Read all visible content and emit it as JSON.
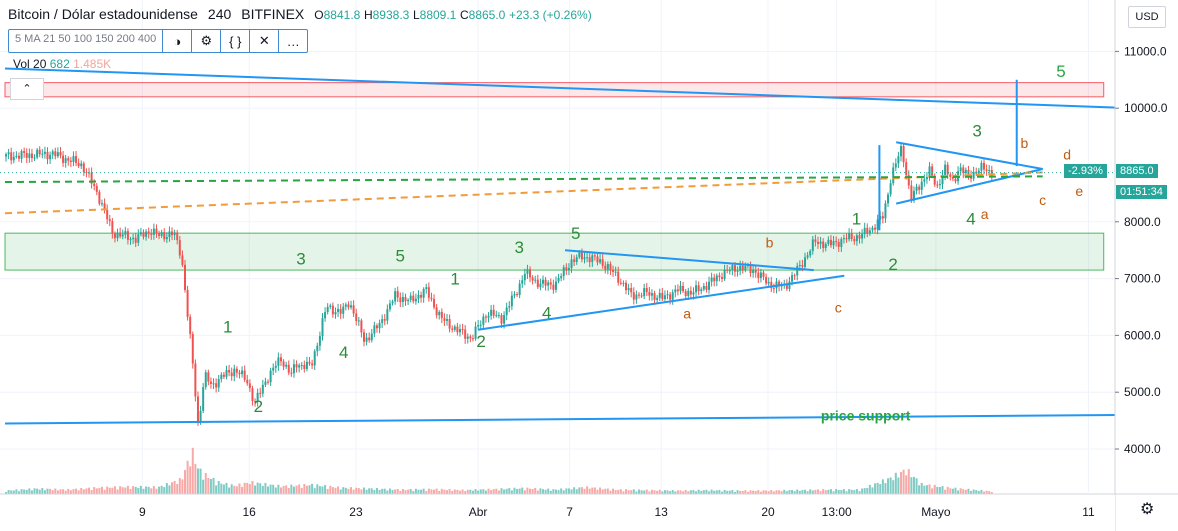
{
  "header": {
    "title": "Bitcoin / Dólar estadounidense",
    "interval": "240",
    "exchange": "BITFINEX",
    "ohlc": [
      {
        "label": "O",
        "value": "8841.8"
      },
      {
        "label": "H",
        "value": "8938.3"
      },
      {
        "label": "L",
        "value": "8809.1"
      },
      {
        "label": "C",
        "value": "8865.0"
      }
    ],
    "change": "+23.3 (+0.26%)"
  },
  "toolbar": {
    "ma_label": "5 MA 21 50 100 150 200 400",
    "icons": [
      "eye-off-icon",
      "gear-icon",
      "braces-icon",
      "close-icon",
      "more-icon"
    ]
  },
  "volume": {
    "label": "Vol",
    "period": "20",
    "value1": "682",
    "value2": "1.485K"
  },
  "collapse_label": "⌃",
  "currency": "USD",
  "settings_icon": "gear-icon",
  "price_axis": {
    "ticks": [
      {
        "value": 11000,
        "label": "11000.0"
      },
      {
        "value": 10000,
        "label": "10000.0"
      },
      {
        "value": 8000,
        "label": "8000.0"
      },
      {
        "value": 7000,
        "label": "7000.0"
      },
      {
        "value": 6000,
        "label": "6000.0"
      },
      {
        "value": 5000,
        "label": "5000.0"
      },
      {
        "value": 4000,
        "label": "4000.0"
      }
    ],
    "last_price": "8865.0",
    "last_change": "-2.93%",
    "countdown": "01:51:34",
    "colors": {
      "label_bg": "#26a69a"
    }
  },
  "time_axis": {
    "labels": [
      {
        "day": 9,
        "label": "9"
      },
      {
        "day": 16,
        "label": "16"
      },
      {
        "day": 23,
        "label": "23"
      },
      {
        "day": 31,
        "label": "Abr"
      },
      {
        "day": 37,
        "label": "7"
      },
      {
        "day": 43,
        "label": "13"
      },
      {
        "day": 50,
        "label": "20"
      },
      {
        "day": 54.5,
        "label": "13:00"
      },
      {
        "day": 61,
        "label": "Mayo"
      },
      {
        "day": 71,
        "label": "11"
      }
    ]
  },
  "chart_data": {
    "type": "candlestick",
    "symbol": "BTC/USD",
    "interval": "240",
    "ylim": [
      3300,
      11600
    ],
    "series": [
      {
        "name": "price",
        "points": [
          [
            0,
            9150
          ],
          [
            3,
            9200
          ],
          [
            5,
            9000
          ],
          [
            6,
            8500
          ],
          [
            7,
            7800
          ],
          [
            8.5,
            7700
          ],
          [
            9.5,
            7850
          ],
          [
            10,
            7750
          ],
          [
            11,
            7800
          ],
          [
            11.5,
            7400
          ],
          [
            12.2,
            5600
          ],
          [
            12.6,
            4400
          ],
          [
            13,
            5300
          ],
          [
            13.5,
            5100
          ],
          [
            14,
            5250
          ],
          [
            15,
            5400
          ],
          [
            15.8,
            5200
          ],
          [
            16.3,
            4800
          ],
          [
            17,
            5200
          ],
          [
            18,
            5600
          ],
          [
            18.7,
            5300
          ],
          [
            19,
            5500
          ],
          [
            20,
            5450
          ],
          [
            21,
            6500
          ],
          [
            22,
            6400
          ],
          [
            22.5,
            6600
          ],
          [
            23.5,
            5900
          ],
          [
            24.5,
            6200
          ],
          [
            25.5,
            6700
          ],
          [
            26.5,
            6600
          ],
          [
            27.5,
            6800
          ],
          [
            28.5,
            6300
          ],
          [
            29.5,
            6100
          ],
          [
            30.5,
            5950
          ],
          [
            31.5,
            6400
          ],
          [
            32.5,
            6300
          ],
          [
            33.5,
            6800
          ],
          [
            34,
            7100
          ],
          [
            35,
            6900
          ],
          [
            36,
            6900
          ],
          [
            37,
            7300
          ],
          [
            37.8,
            7400
          ],
          [
            39,
            7300
          ],
          [
            40,
            7050
          ],
          [
            41,
            6700
          ],
          [
            42,
            6750
          ],
          [
            43,
            6650
          ],
          [
            44,
            6800
          ],
          [
            45,
            6750
          ],
          [
            46,
            6900
          ],
          [
            47,
            7100
          ],
          [
            48,
            7200
          ],
          [
            49,
            7150
          ],
          [
            50,
            6900
          ],
          [
            51,
            6850
          ],
          [
            52,
            7200
          ],
          [
            53,
            7650
          ],
          [
            54,
            7600
          ],
          [
            55,
            7700
          ],
          [
            56,
            7750
          ],
          [
            56.8,
            7900
          ],
          [
            57.5,
            8100
          ],
          [
            58,
            8800
          ],
          [
            58.7,
            9300
          ],
          [
            59.3,
            8400
          ],
          [
            60,
            8700
          ],
          [
            60.5,
            8900
          ],
          [
            61,
            8600
          ],
          [
            61.5,
            8950
          ],
          [
            62,
            8700
          ],
          [
            62.5,
            8950
          ],
          [
            63,
            8800
          ],
          [
            64,
            8950
          ],
          [
            64.7,
            8865
          ]
        ]
      },
      {
        "name": "volume",
        "ylim": [
          0,
          10000
        ],
        "points": [
          [
            0,
            900
          ],
          [
            2,
            1300
          ],
          [
            4,
            1100
          ],
          [
            6,
            1500
          ],
          [
            8,
            1700
          ],
          [
            10,
            1600
          ],
          [
            11.5,
            3200
          ],
          [
            12.2,
            9000
          ],
          [
            12.6,
            5400
          ],
          [
            13,
            4200
          ],
          [
            14,
            2500
          ],
          [
            15,
            1900
          ],
          [
            16,
            2600
          ],
          [
            18,
            1800
          ],
          [
            20,
            2100
          ],
          [
            22,
            1500
          ],
          [
            24,
            1300
          ],
          [
            26,
            1100
          ],
          [
            28,
            1200
          ],
          [
            30,
            1000
          ],
          [
            32,
            1200
          ],
          [
            34,
            1400
          ],
          [
            36,
            1100
          ],
          [
            38,
            1600
          ],
          [
            40,
            1100
          ],
          [
            42,
            1000
          ],
          [
            44,
            900
          ],
          [
            46,
            1000
          ],
          [
            48,
            900
          ],
          [
            50,
            900
          ],
          [
            52,
            1000
          ],
          [
            54,
            1100
          ],
          [
            56,
            1100
          ],
          [
            58,
            3500
          ],
          [
            59,
            5200
          ],
          [
            60,
            2200
          ],
          [
            62,
            1400
          ],
          [
            64,
            900
          ],
          [
            64.7,
            700
          ]
        ]
      }
    ],
    "overlays": [
      {
        "kind": "trendline",
        "color": "#2196f3",
        "from": [
          0,
          10700
        ],
        "to": [
          74,
          10000
        ]
      },
      {
        "kind": "trendline",
        "color": "#2196f3",
        "from": [
          0,
          4450
        ],
        "to": [
          74,
          4600
        ]
      },
      {
        "kind": "trendline",
        "color": "#2196f3",
        "from": [
          31,
          6100
        ],
        "to": [
          55,
          7050
        ]
      },
      {
        "kind": "trendline",
        "color": "#2196f3",
        "from": [
          36.7,
          7500
        ],
        "to": [
          53,
          7150
        ]
      },
      {
        "kind": "trendline",
        "color": "#2196f3",
        "from": [
          58.4,
          9400
        ],
        "to": [
          68,
          8930
        ]
      },
      {
        "kind": "trendline",
        "color": "#2196f3",
        "from": [
          58.4,
          8320
        ],
        "to": [
          68,
          8930
        ]
      },
      {
        "kind": "trendline",
        "color": "#2196f3",
        "from": [
          57.3,
          9350
        ],
        "to": [
          57.3,
          7850
        ]
      },
      {
        "kind": "trendline",
        "color": "#2196f3",
        "from": [
          66.3,
          10500
        ],
        "to": [
          66.3,
          8980
        ]
      },
      {
        "kind": "ma",
        "color": "#f29b3a",
        "dash": true,
        "from": [
          0,
          8150
        ],
        "to": [
          68,
          8870
        ]
      },
      {
        "kind": "ma",
        "color": "#26a640",
        "dash": true,
        "from": [
          0,
          8700
        ],
        "to": [
          68,
          8800
        ]
      },
      {
        "kind": "zone",
        "color": "#f23645",
        "top": 10450,
        "bottom": 10200,
        "from": 0,
        "to": 72
      },
      {
        "kind": "zone",
        "color": "#26a640",
        "top": 7800,
        "bottom": 7150,
        "from": 0,
        "to": 72
      }
    ],
    "annotations": [
      {
        "text": "1",
        "x": 14.6,
        "y": 6050,
        "color": "#2e8b3a"
      },
      {
        "text": "2",
        "x": 16.6,
        "y": 4650,
        "color": "#2e8b3a"
      },
      {
        "text": "3",
        "x": 19.4,
        "y": 7250,
        "color": "#2e8b3a"
      },
      {
        "text": "4",
        "x": 22.2,
        "y": 5600,
        "color": "#2e8b3a"
      },
      {
        "text": "5",
        "x": 25.9,
        "y": 7300,
        "color": "#2e8b3a"
      },
      {
        "text": "1",
        "x": 29.5,
        "y": 6900,
        "color": "#2e8b3a"
      },
      {
        "text": "2",
        "x": 31.2,
        "y": 5800,
        "color": "#2e8b3a"
      },
      {
        "text": "3",
        "x": 33.7,
        "y": 7450,
        "color": "#2e8b3a"
      },
      {
        "text": "4",
        "x": 35.5,
        "y": 6300,
        "color": "#2e8b3a"
      },
      {
        "text": "5",
        "x": 37.4,
        "y": 7700,
        "color": "#2e8b3a"
      },
      {
        "text": "a",
        "x": 44.7,
        "y": 6300,
        "color": "#c15c10"
      },
      {
        "text": "b",
        "x": 50.1,
        "y": 7550,
        "color": "#c15c10"
      },
      {
        "text": "c",
        "x": 54.6,
        "y": 6400,
        "color": "#c15c10"
      },
      {
        "text": "1",
        "x": 55.8,
        "y": 7950,
        "color": "#2e8b3a"
      },
      {
        "text": "2",
        "x": 58.2,
        "y": 7150,
        "color": "#2e8b3a"
      },
      {
        "text": "3",
        "x": 63.7,
        "y": 9500,
        "color": "#2e8b3a"
      },
      {
        "text": "4",
        "x": 63.3,
        "y": 7950,
        "color": "#2e8b3a"
      },
      {
        "text": "a",
        "x": 64.2,
        "y": 8050,
        "color": "#c15c10"
      },
      {
        "text": "b",
        "x": 66.8,
        "y": 9300,
        "color": "#c15c10"
      },
      {
        "text": "c",
        "x": 68.0,
        "y": 8300,
        "color": "#c15c10"
      },
      {
        "text": "d",
        "x": 69.6,
        "y": 9100,
        "color": "#c15c10"
      },
      {
        "text": "e",
        "x": 70.4,
        "y": 8450,
        "color": "#c15c10"
      },
      {
        "text": "5",
        "x": 69.2,
        "y": 10550,
        "color": "#26a640"
      },
      {
        "text": "price support",
        "x": 56.4,
        "y": 4500,
        "color": "#26a640"
      }
    ],
    "colors": {
      "up": "#26a69a",
      "down": "#ef5350",
      "grid": "#f0f3fa"
    }
  }
}
